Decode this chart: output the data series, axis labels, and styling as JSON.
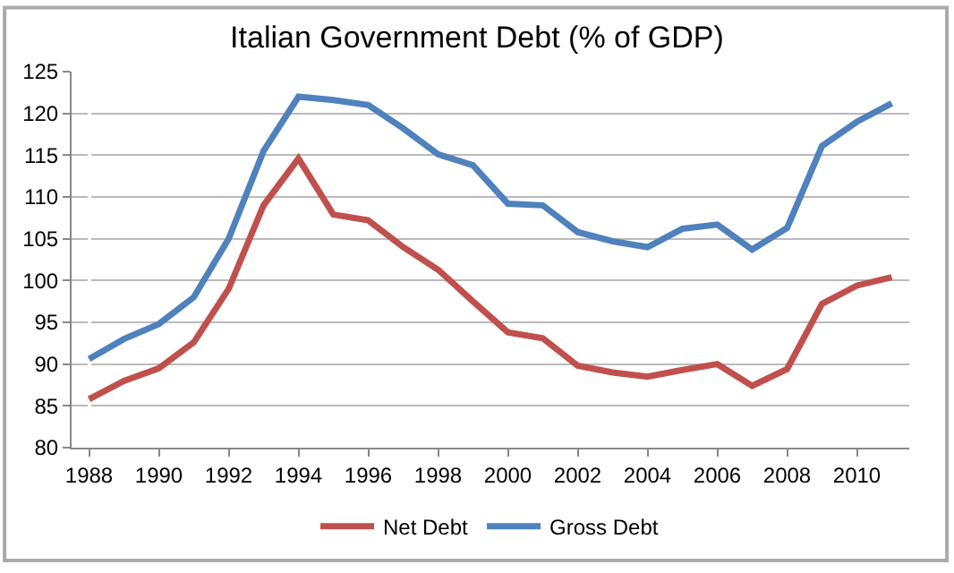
{
  "chart_data": {
    "type": "line",
    "title": "Italian Government Debt (% of GDP)",
    "categories": [
      "1988",
      null,
      "1990",
      null,
      "1992",
      null,
      "1994",
      null,
      "1996",
      null,
      "1998",
      null,
      "2000",
      null,
      "2002",
      null,
      "2004",
      null,
      "2006",
      null,
      "2008",
      null,
      "2010",
      null
    ],
    "series": [
      {
        "name": "Net Debt",
        "color": "#c0504d",
        "values": [
          85.8,
          88,
          89.5,
          92.6,
          99,
          109,
          114.6,
          107.9,
          107.2,
          104,
          101.3,
          97.5,
          93.8,
          93.1,
          89.8,
          89,
          88.5,
          89.3,
          90,
          87.4,
          89.4,
          97.2,
          99.4,
          100.4
        ]
      },
      {
        "name": "Gross Debt",
        "color": "#4f81bd",
        "values": [
          90.6,
          93,
          94.8,
          98,
          105,
          115.5,
          122,
          121.6,
          121,
          118.2,
          115.1,
          113.8,
          109.2,
          109,
          105.8,
          104.7,
          104,
          106.2,
          106.7,
          103.7,
          106.3,
          116.1,
          119,
          121.2
        ]
      }
    ],
    "ylim": [
      80,
      125
    ],
    "yticks": [
      80,
      85,
      90,
      95,
      100,
      105,
      110,
      115,
      120,
      125
    ],
    "grid": "y",
    "legend": "bottom",
    "marker": "none",
    "line_style": "solid"
  }
}
